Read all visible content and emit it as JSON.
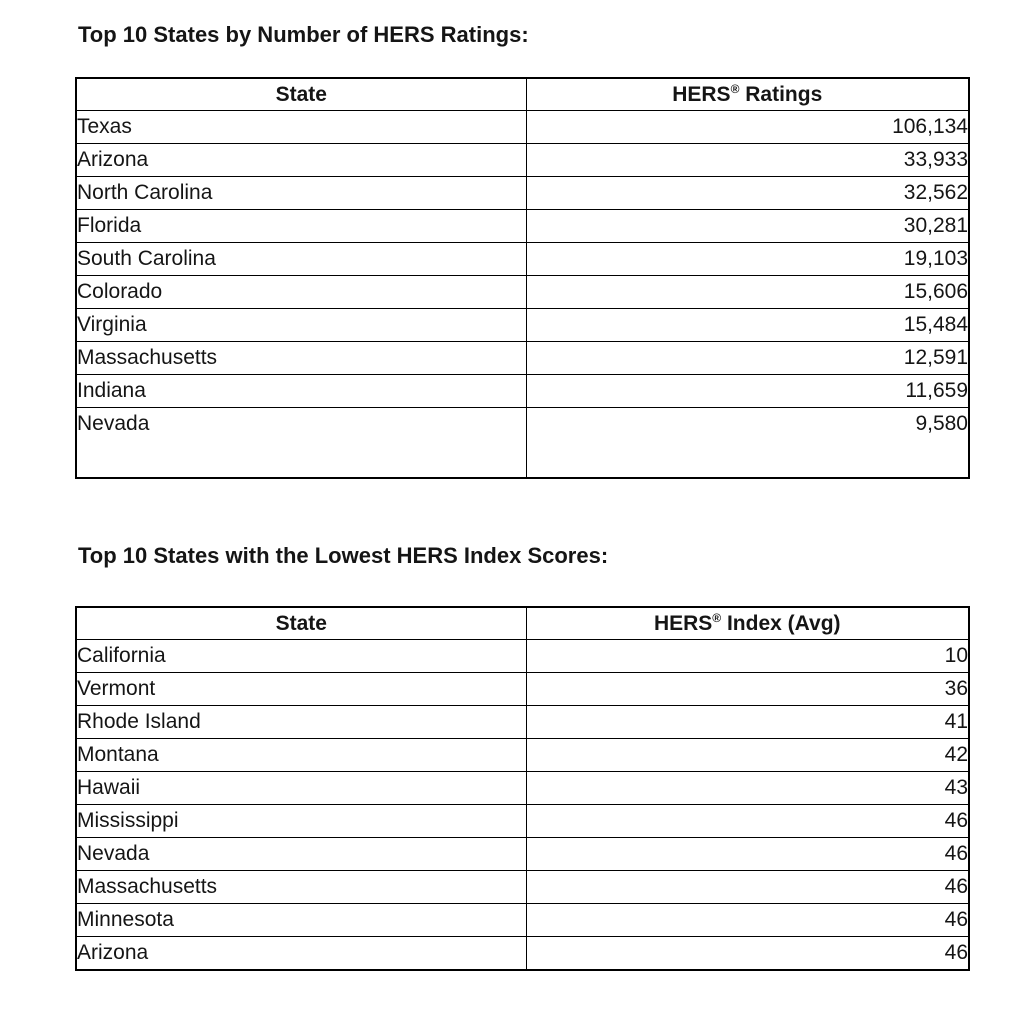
{
  "page": {
    "background_color": "#ffffff",
    "text_color": "#151515",
    "border_color": "#000000"
  },
  "section1": {
    "title": "Top 10 States by Number of HERS Ratings:",
    "table": {
      "col1_header": "State",
      "col2_header_brand": "HERS",
      "col2_header_reg": "®",
      "col2_header_rest": " Ratings",
      "rows": [
        {
          "state": "Texas",
          "value": "106,134"
        },
        {
          "state": "Arizona",
          "value": "33,933"
        },
        {
          "state": "North Carolina",
          "value": "32,562"
        },
        {
          "state": "Florida",
          "value": "30,281"
        },
        {
          "state": "South Carolina",
          "value": "19,103"
        },
        {
          "state": "Colorado",
          "value": "15,606"
        },
        {
          "state": "Virginia",
          "value": "15,484"
        },
        {
          "state": "Massachusetts",
          "value": "12,591"
        },
        {
          "state": "Indiana",
          "value": "11,659"
        },
        {
          "state": "Nevada",
          "value": "9,580"
        }
      ]
    }
  },
  "section2": {
    "title": "Top 10 States with the Lowest HERS Index Scores:",
    "table": {
      "col1_header": "State",
      "col2_header_brand": "HERS",
      "col2_header_reg": "®",
      "col2_header_rest": " Index (Avg)",
      "rows": [
        {
          "state": "California",
          "value": "10"
        },
        {
          "state": "Vermont",
          "value": "36"
        },
        {
          "state": "Rhode Island",
          "value": "41"
        },
        {
          "state": "Montana",
          "value": "42"
        },
        {
          "state": "Hawaii",
          "value": "43"
        },
        {
          "state": "Mississippi",
          "value": "46"
        },
        {
          "state": "Nevada",
          "value": "46"
        },
        {
          "state": "Massachusetts",
          "value": "46"
        },
        {
          "state": "Minnesota",
          "value": "46"
        },
        {
          "state": "Arizona",
          "value": "46"
        }
      ]
    }
  }
}
